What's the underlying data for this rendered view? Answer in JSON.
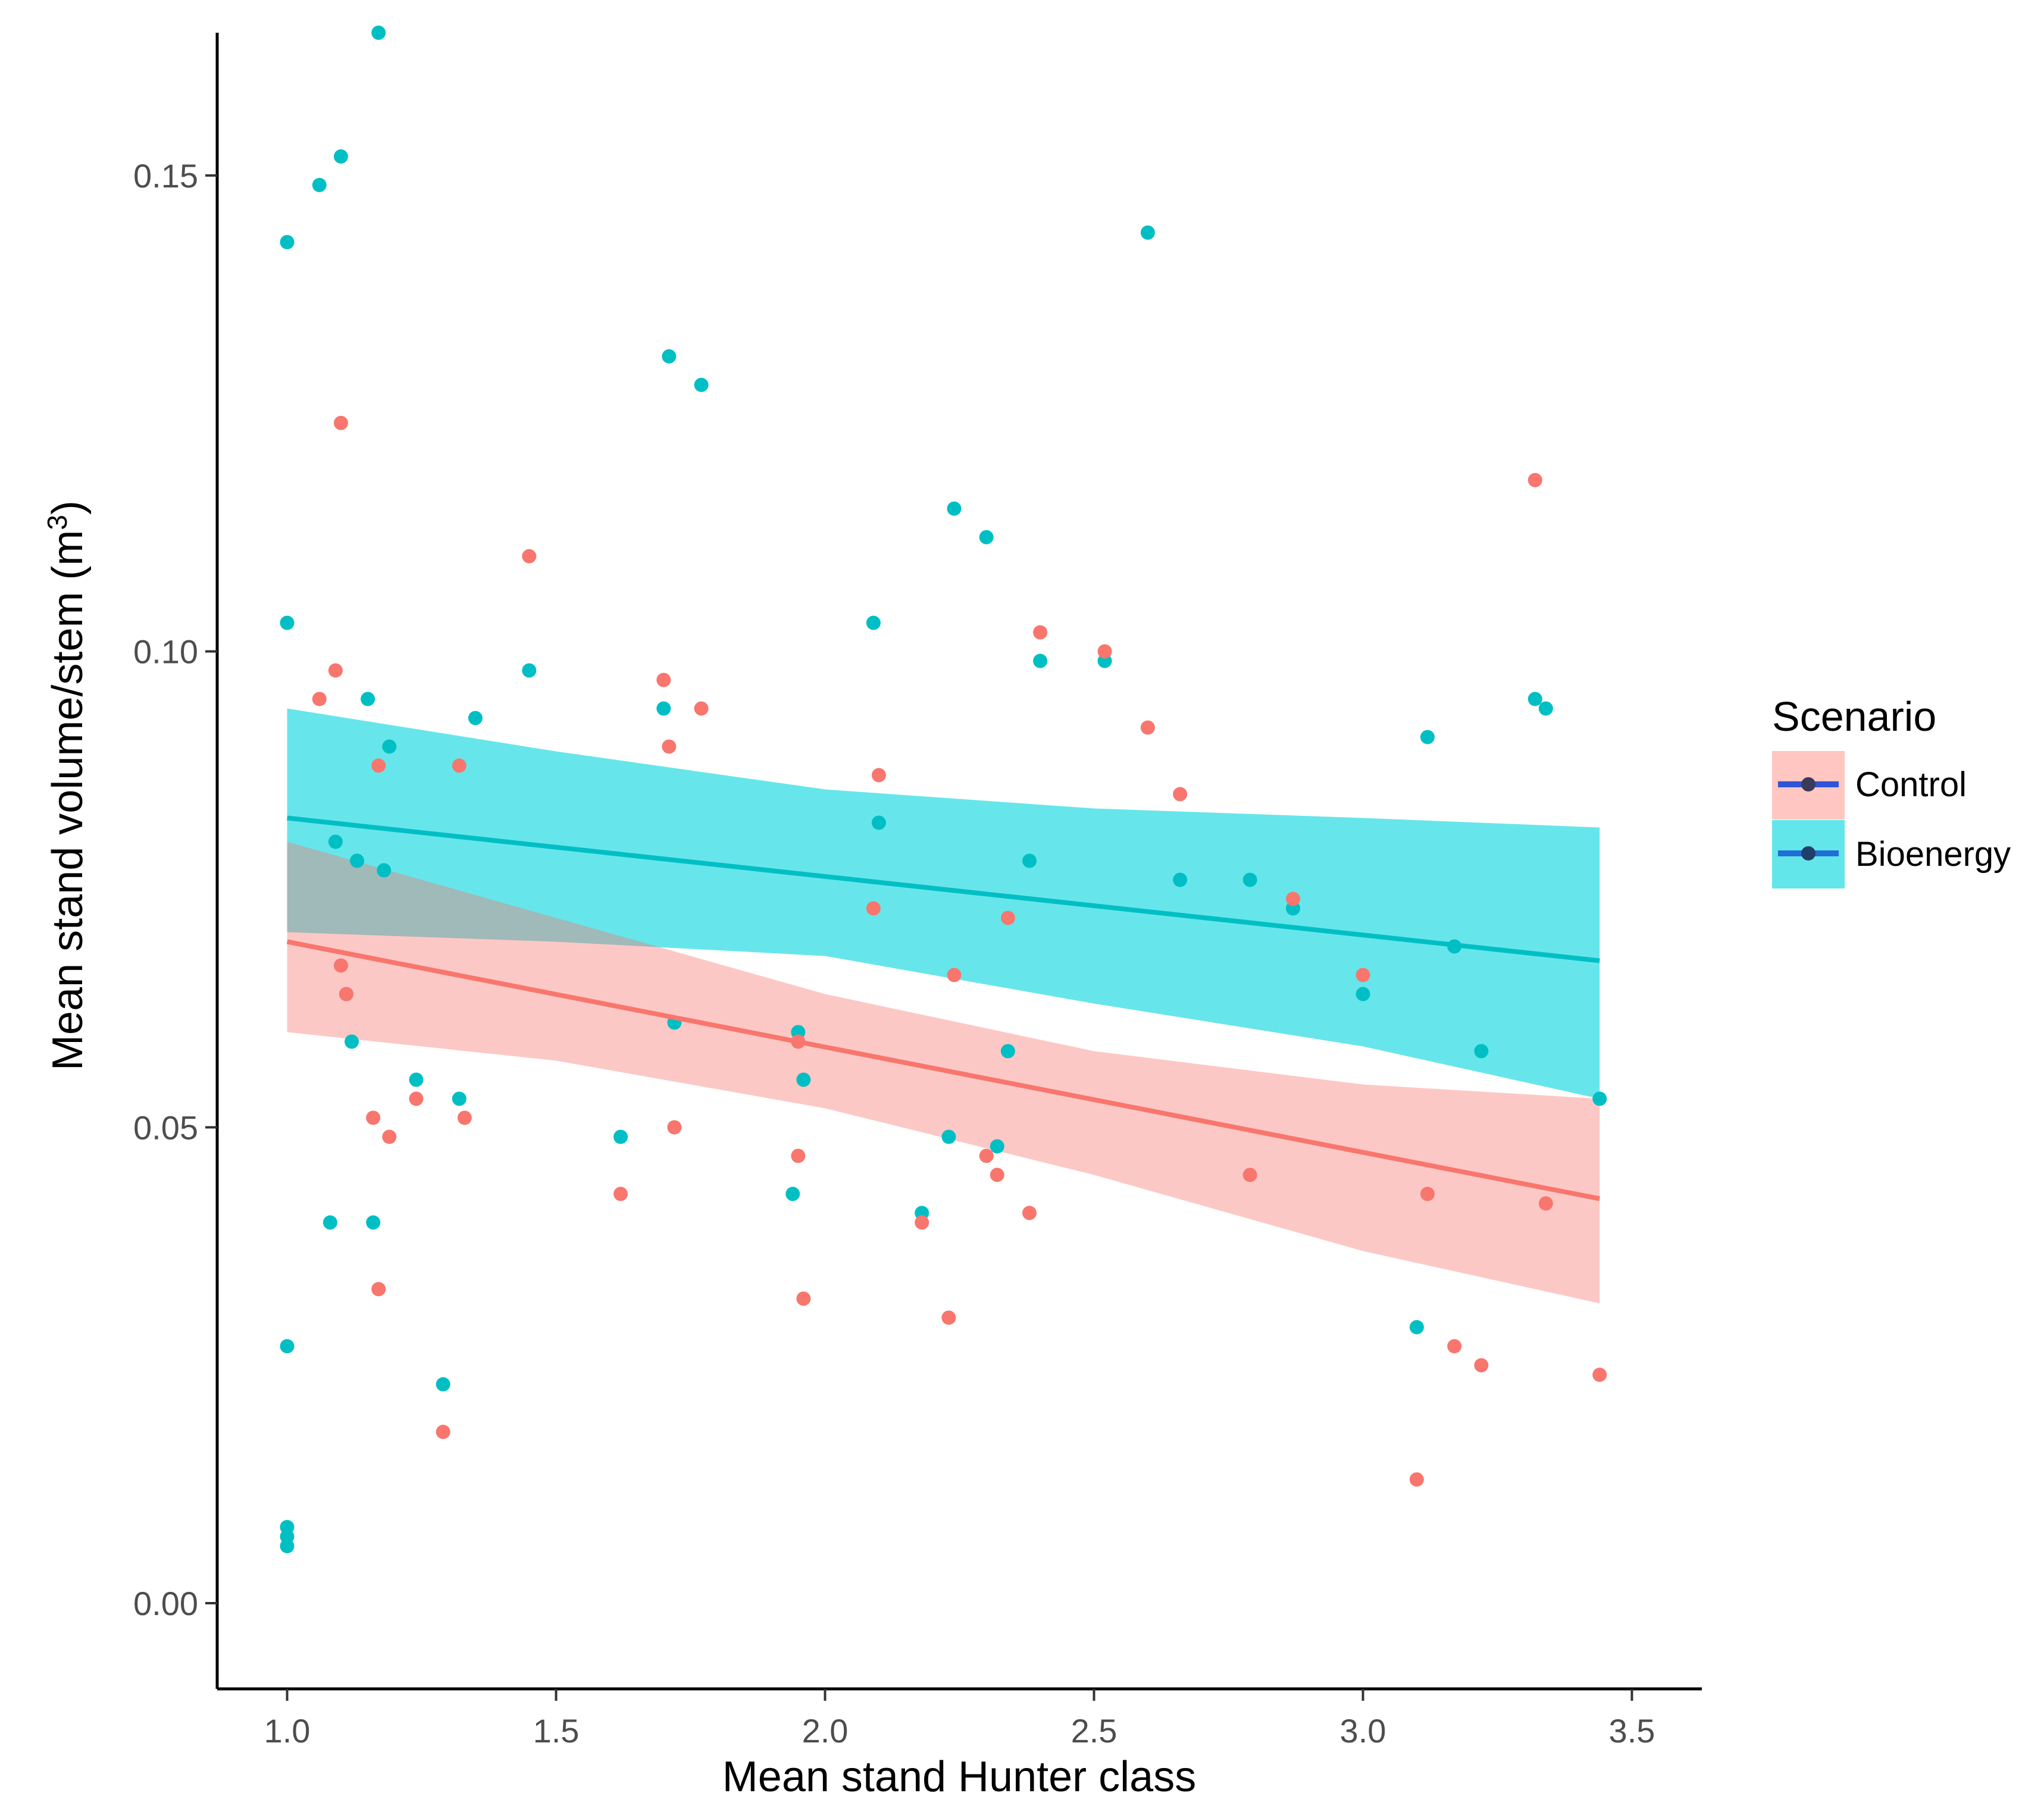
{
  "chart_data": {
    "type": "scatter",
    "title": "",
    "xlabel": "Mean stand Hunter class",
    "ylabel": "Mean stand volume/stem (m",
    "ylabel_superscript": "3",
    "ylabel_suffix": ")",
    "xlim": [
      0.87,
      3.63
    ],
    "ylim": [
      -0.009,
      0.165
    ],
    "x_ticks": [
      1.0,
      1.5,
      2.0,
      2.5,
      3.0,
      3.5
    ],
    "x_tick_labels": [
      "1.0",
      "1.5",
      "2.0",
      "2.5",
      "3.0",
      "3.5"
    ],
    "y_ticks": [
      0.0,
      0.05,
      0.1,
      0.15
    ],
    "y_tick_labels": [
      "0.00",
      "0.05",
      "0.10",
      "0.15"
    ],
    "grid": false,
    "legend": {
      "title": "Scenario",
      "position": "right",
      "entries": [
        {
          "label": "Control",
          "color": "#F8766D",
          "band_color": "#FFC6C2",
          "line_color": "#2F54D6"
        },
        {
          "label": "Bioenergy",
          "color": "#00BFC4",
          "band_color": "#63E6EA",
          "line_color": "#1F6FD6"
        }
      ]
    },
    "series": [
      {
        "name": "Bioenergy",
        "color": "#00BFC4",
        "band_color": "#00D5DD",
        "band_opacity": 0.6,
        "points": [
          [
            1.0,
            0.007
          ],
          [
            1.0,
            0.006
          ],
          [
            1.0,
            0.008
          ],
          [
            1.0,
            0.027
          ],
          [
            1.0,
            0.103
          ],
          [
            1.0,
            0.143
          ],
          [
            1.06,
            0.149
          ],
          [
            1.08,
            0.04
          ],
          [
            1.09,
            0.08
          ],
          [
            1.1,
            0.152
          ],
          [
            1.11,
            0.064
          ],
          [
            1.12,
            0.059
          ],
          [
            1.13,
            0.078
          ],
          [
            1.15,
            0.095
          ],
          [
            1.16,
            0.04
          ],
          [
            1.17,
            0.165
          ],
          [
            1.18,
            0.077
          ],
          [
            1.19,
            0.09
          ],
          [
            1.24,
            0.055
          ],
          [
            1.29,
            0.023
          ],
          [
            1.32,
            0.053
          ],
          [
            1.35,
            0.093
          ],
          [
            1.45,
            0.098
          ],
          [
            1.62,
            0.049
          ],
          [
            1.7,
            0.094
          ],
          [
            1.71,
            0.131
          ],
          [
            1.72,
            0.061
          ],
          [
            1.77,
            0.128
          ],
          [
            1.94,
            0.043
          ],
          [
            1.95,
            0.06
          ],
          [
            1.96,
            0.055
          ],
          [
            2.09,
            0.103
          ],
          [
            2.1,
            0.082
          ],
          [
            2.18,
            0.041
          ],
          [
            2.23,
            0.049
          ],
          [
            2.24,
            0.115
          ],
          [
            2.3,
            0.112
          ],
          [
            2.32,
            0.048
          ],
          [
            2.34,
            0.058
          ],
          [
            2.38,
            0.078
          ],
          [
            2.4,
            0.099
          ],
          [
            2.52,
            0.099
          ],
          [
            2.6,
            0.144
          ],
          [
            2.66,
            0.076
          ],
          [
            2.79,
            0.076
          ],
          [
            2.87,
            0.073
          ],
          [
            3.0,
            0.064
          ],
          [
            3.1,
            0.029
          ],
          [
            3.12,
            0.091
          ],
          [
            3.17,
            0.069
          ],
          [
            3.22,
            0.058
          ],
          [
            3.32,
            0.095
          ],
          [
            3.34,
            0.094
          ],
          [
            3.44,
            0.053
          ]
        ],
        "fit": {
          "x": [
            1.0,
            3.44
          ],
          "y": [
            0.0825,
            0.0675
          ]
        },
        "ci_upper": [
          [
            1.0,
            0.094
          ],
          [
            1.5,
            0.0895
          ],
          [
            2.0,
            0.0855
          ],
          [
            2.5,
            0.0835
          ],
          [
            3.0,
            0.0825
          ],
          [
            3.44,
            0.0815
          ]
        ],
        "ci_lower": [
          [
            1.0,
            0.0705
          ],
          [
            1.5,
            0.0695
          ],
          [
            2.0,
            0.068
          ],
          [
            2.5,
            0.063
          ],
          [
            3.0,
            0.0585
          ],
          [
            3.44,
            0.053
          ]
        ]
      },
      {
        "name": "Control",
        "color": "#F8766D",
        "band_color": "#F8766D",
        "band_opacity": 0.4,
        "points": [
          [
            1.06,
            0.095
          ],
          [
            1.09,
            0.098
          ],
          [
            1.1,
            0.124
          ],
          [
            1.1,
            0.067
          ],
          [
            1.11,
            0.064
          ],
          [
            1.16,
            0.051
          ],
          [
            1.17,
            0.088
          ],
          [
            1.17,
            0.033
          ],
          [
            1.19,
            0.049
          ],
          [
            1.24,
            0.053
          ],
          [
            1.29,
            0.018
          ],
          [
            1.32,
            0.088
          ],
          [
            1.33,
            0.051
          ],
          [
            1.45,
            0.11
          ],
          [
            1.62,
            0.043
          ],
          [
            1.7,
            0.097
          ],
          [
            1.71,
            0.09
          ],
          [
            1.72,
            0.05
          ],
          [
            1.77,
            0.094
          ],
          [
            1.95,
            0.047
          ],
          [
            1.95,
            0.059
          ],
          [
            1.96,
            0.032
          ],
          [
            2.09,
            0.073
          ],
          [
            2.1,
            0.087
          ],
          [
            2.18,
            0.04
          ],
          [
            2.23,
            0.03
          ],
          [
            2.24,
            0.066
          ],
          [
            2.3,
            0.047
          ],
          [
            2.32,
            0.045
          ],
          [
            2.34,
            0.072
          ],
          [
            2.38,
            0.041
          ],
          [
            2.4,
            0.102
          ],
          [
            2.52,
            0.1
          ],
          [
            2.6,
            0.092
          ],
          [
            2.66,
            0.085
          ],
          [
            2.79,
            0.045
          ],
          [
            2.87,
            0.074
          ],
          [
            3.0,
            0.066
          ],
          [
            3.1,
            0.013
          ],
          [
            3.12,
            0.043
          ],
          [
            3.17,
            0.027
          ],
          [
            3.22,
            0.025
          ],
          [
            3.32,
            0.118
          ],
          [
            3.34,
            0.042
          ],
          [
            3.44,
            0.024
          ]
        ],
        "fit": {
          "x": [
            1.0,
            3.44
          ],
          "y": [
            0.0695,
            0.0425
          ]
        },
        "ci_upper": [
          [
            1.0,
            0.08
          ],
          [
            1.5,
            0.072
          ],
          [
            2.0,
            0.064
          ],
          [
            2.5,
            0.058
          ],
          [
            3.0,
            0.0545
          ],
          [
            3.44,
            0.053
          ]
        ],
        "ci_lower": [
          [
            1.0,
            0.06
          ],
          [
            1.5,
            0.057
          ],
          [
            2.0,
            0.052
          ],
          [
            2.5,
            0.045
          ],
          [
            3.0,
            0.037
          ],
          [
            3.44,
            0.0315
          ]
        ]
      }
    ]
  }
}
